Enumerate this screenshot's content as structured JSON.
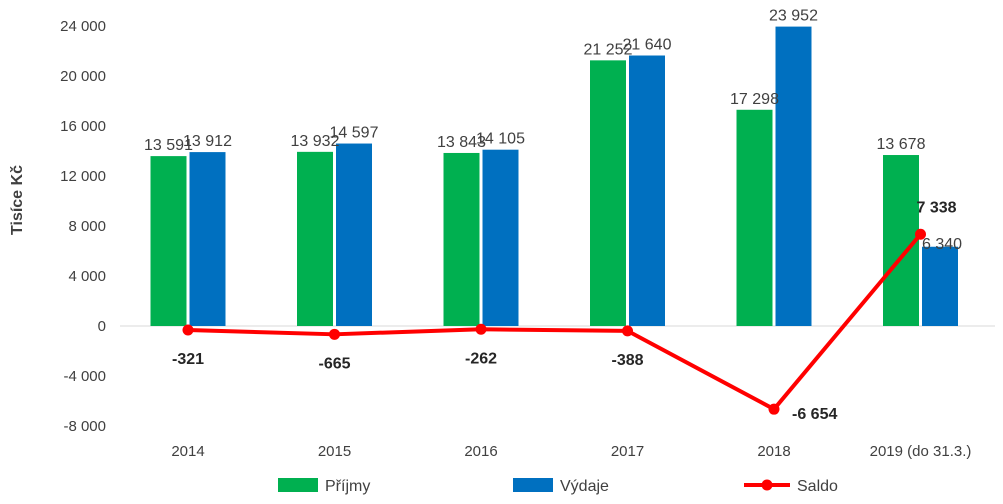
{
  "chart_data": {
    "type": "bar",
    "ylabel": "Tisíce Kč",
    "ylim": [
      -8000,
      24000
    ],
    "yticks": [
      24000,
      20000,
      16000,
      12000,
      8000,
      4000,
      0,
      -4000,
      -8000
    ],
    "ytick_labels": [
      "24 000",
      "20 000",
      "16 000",
      "12 000",
      "8 000",
      "4 000",
      "0",
      "-4 000",
      "-8 000"
    ],
    "categories": [
      "2014",
      "2015",
      "2016",
      "2017",
      "2018",
      "2019 (do 31.3.)"
    ],
    "series": [
      {
        "name": "Příjmy",
        "kind": "bar",
        "color": "#00b050",
        "values": [
          13591,
          13932,
          13843,
          21252,
          17298,
          13678
        ],
        "labels": [
          "13 591",
          "13 932",
          "13 843",
          "21 252",
          "17 298",
          "13 678"
        ]
      },
      {
        "name": "Výdaje",
        "kind": "bar",
        "color": "#0070c0",
        "values": [
          13912,
          14597,
          14105,
          21640,
          23952,
          6340
        ],
        "labels": [
          "13 912",
          "14 597",
          "14 105",
          "21 640",
          "23 952",
          "6 340"
        ]
      },
      {
        "name": "Saldo",
        "kind": "line",
        "color": "#ff0000",
        "values": [
          -321,
          -665,
          -262,
          -388,
          -6654,
          7338
        ],
        "labels": [
          "-321",
          "-665",
          "-262",
          "-388",
          "-6 654",
          "7 338"
        ]
      }
    ],
    "legend_position": "bottom",
    "grid": false
  }
}
